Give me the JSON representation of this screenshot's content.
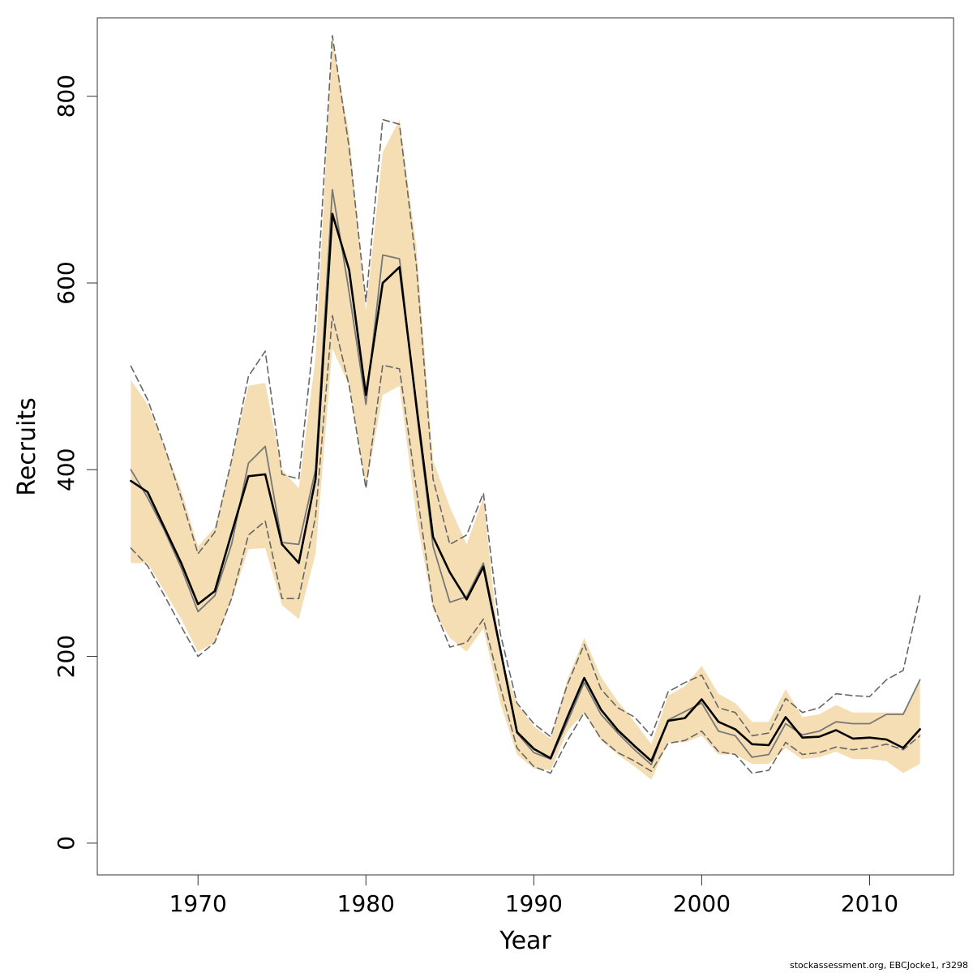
{
  "chart_data": {
    "type": "line",
    "xlabel": "Year",
    "ylabel": "Recruits",
    "xlim": [
      1964,
      2015
    ],
    "ylim": [
      -34,
      884
    ],
    "x_ticks": [
      1970,
      1980,
      1990,
      2000,
      2010
    ],
    "y_ticks": [
      0,
      200,
      400,
      600,
      800
    ],
    "grid": false,
    "legend": "none",
    "x": [
      1966,
      1967,
      1968,
      1969,
      1970,
      1971,
      1972,
      1973,
      1974,
      1975,
      1976,
      1977,
      1978,
      1979,
      1980,
      1981,
      1982,
      1983,
      1984,
      1985,
      1986,
      1987,
      1988,
      1989,
      1990,
      1991,
      1992,
      1993,
      1994,
      1995,
      1996,
      1997,
      1998,
      1999,
      2000,
      2001,
      2002,
      2003,
      2004,
      2005,
      2006,
      2007,
      2008,
      2009,
      2010,
      2011,
      2012,
      2013
    ],
    "band": {
      "color": "#f5deb3",
      "upper": [
        496,
        470,
        425,
        378,
        318,
        338,
        410,
        490,
        493,
        400,
        380,
        520,
        860,
        760,
        570,
        740,
        775,
        640,
        410,
        360,
        320,
        370,
        200,
        150,
        125,
        112,
        175,
        220,
        178,
        152,
        130,
        106,
        158,
        168,
        190,
        160,
        150,
        130,
        130,
        165,
        135,
        138,
        148,
        140,
        140,
        140,
        140,
        175
      ],
      "lower": [
        300,
        300,
        270,
        240,
        205,
        215,
        260,
        315,
        316,
        255,
        240,
        310,
        530,
        490,
        380,
        480,
        490,
        350,
        250,
        220,
        205,
        230,
        150,
        95,
        80,
        78,
        120,
        140,
        110,
        95,
        82,
        68,
        108,
        108,
        115,
        95,
        95,
        85,
        85,
        102,
        90,
        92,
        98,
        90,
        90,
        88,
        75,
        85
      ]
    },
    "series": [
      {
        "color": "#000000",
        "width": 2.6,
        "dash": "none",
        "values": [
          388,
          376,
          338,
          300,
          256,
          270,
          332,
          393,
          395,
          320,
          300,
          390,
          674,
          614,
          480,
          600,
          617,
          470,
          328,
          290,
          261,
          296,
          208,
          119,
          101,
          91,
          135,
          177,
          143,
          121,
          104,
          88,
          131,
          134,
          154,
          130,
          122,
          106,
          105,
          135,
          113,
          114,
          121,
          112,
          113,
          111,
          102,
          122
        ]
      },
      {
        "color": "#777777",
        "width": 1.8,
        "dash": "none",
        "values": [
          400,
          370,
          335,
          295,
          248,
          265,
          320,
          407,
          425,
          322,
          320,
          400,
          700,
          590,
          470,
          630,
          626,
          465,
          318,
          258,
          264,
          300,
          210,
          118,
          97,
          90,
          130,
          172,
          138,
          118,
          100,
          84,
          132,
          141,
          150,
          120,
          115,
          92,
          95,
          128,
          116,
          120,
          130,
          128,
          128,
          138,
          138,
          175
        ]
      },
      {
        "color": "#666666",
        "width": 1.6,
        "dash": "8 5",
        "values": [
          511,
          475,
          425,
          370,
          310,
          333,
          410,
          500,
          527,
          395,
          390,
          560,
          865,
          745,
          580,
          775,
          770,
          620,
          390,
          320,
          330,
          375,
          225,
          150,
          128,
          114,
          170,
          213,
          165,
          145,
          135,
          115,
          162,
          172,
          180,
          145,
          140,
          115,
          118,
          155,
          140,
          145,
          160,
          158,
          157,
          175,
          185,
          265
        ]
      },
      {
        "color": "#666666",
        "width": 1.6,
        "dash": "8 5",
        "values": [
          316,
          297,
          265,
          232,
          200,
          215,
          262,
          330,
          345,
          262,
          262,
          350,
          565,
          490,
          380,
          512,
          508,
          380,
          255,
          210,
          215,
          240,
          168,
          102,
          82,
          75,
          110,
          140,
          112,
          97,
          88,
          77,
          107,
          110,
          120,
          98,
          95,
          75,
          78,
          108,
          95,
          97,
          103,
          100,
          102,
          106,
          100,
          115
        ]
      }
    ]
  },
  "footer": {
    "note": "stockassessment.org, EBCJocke1, r3298"
  }
}
